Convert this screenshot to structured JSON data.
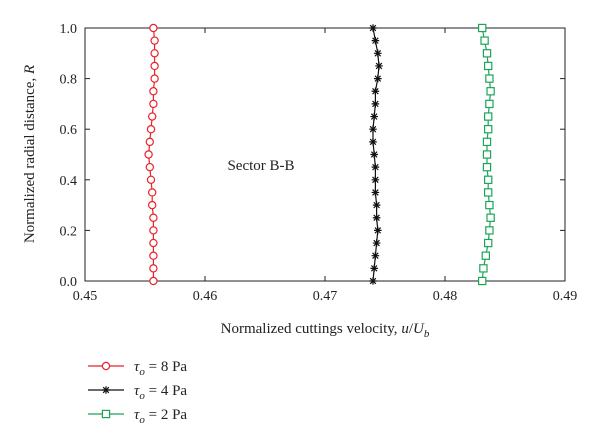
{
  "chart_data": {
    "type": "line",
    "xlabel_main": "Normalized cuttings velocity, ",
    "xlabel_italic": "u",
    "xlabel_slash": "/",
    "xlabel_U": "U",
    "xlabel_sub": "b",
    "ylabel_main": "Normalized radial distance, ",
    "ylabel_italic": "R",
    "xlim": [
      0.45,
      0.49
    ],
    "ylim": [
      0.0,
      1.0
    ],
    "x_ticks": [
      "0.45",
      "0.46",
      "0.47",
      "0.48",
      "0.49"
    ],
    "y_ticks": [
      "0.0",
      "0.2",
      "0.4",
      "0.6",
      "0.8",
      "1.0"
    ],
    "annotation": "Sector B-B",
    "legend_placement": "bottom-left, below plot",
    "legend_tau": "τ",
    "legend_sub": "o",
    "series": [
      {
        "name": "τo = 8 Pa",
        "legend_value": " = 8 Pa",
        "color": "#e8232a",
        "marker": "circle",
        "points": [
          {
            "x": 0.4557,
            "y": 1.0
          },
          {
            "x": 0.4558,
            "y": 0.95
          },
          {
            "x": 0.4558,
            "y": 0.9
          },
          {
            "x": 0.4558,
            "y": 0.85
          },
          {
            "x": 0.4558,
            "y": 0.8
          },
          {
            "x": 0.4557,
            "y": 0.75
          },
          {
            "x": 0.4557,
            "y": 0.7
          },
          {
            "x": 0.4556,
            "y": 0.65
          },
          {
            "x": 0.4555,
            "y": 0.6
          },
          {
            "x": 0.4554,
            "y": 0.55
          },
          {
            "x": 0.4553,
            "y": 0.5
          },
          {
            "x": 0.4554,
            "y": 0.45
          },
          {
            "x": 0.4555,
            "y": 0.4
          },
          {
            "x": 0.4556,
            "y": 0.35
          },
          {
            "x": 0.4556,
            "y": 0.3
          },
          {
            "x": 0.4557,
            "y": 0.25
          },
          {
            "x": 0.4557,
            "y": 0.2
          },
          {
            "x": 0.4557,
            "y": 0.15
          },
          {
            "x": 0.4557,
            "y": 0.1
          },
          {
            "x": 0.4557,
            "y": 0.05
          },
          {
            "x": 0.4557,
            "y": 0.0
          }
        ]
      },
      {
        "name": "τo = 4 Pa",
        "legend_value": " = 4 Pa",
        "color": "#111111",
        "marker": "asterisk",
        "points": [
          {
            "x": 0.474,
            "y": 1.0
          },
          {
            "x": 0.4742,
            "y": 0.95
          },
          {
            "x": 0.4744,
            "y": 0.9
          },
          {
            "x": 0.4745,
            "y": 0.85
          },
          {
            "x": 0.4744,
            "y": 0.8
          },
          {
            "x": 0.4742,
            "y": 0.75
          },
          {
            "x": 0.4742,
            "y": 0.7
          },
          {
            "x": 0.4741,
            "y": 0.65
          },
          {
            "x": 0.474,
            "y": 0.6
          },
          {
            "x": 0.474,
            "y": 0.55
          },
          {
            "x": 0.4741,
            "y": 0.5
          },
          {
            "x": 0.4742,
            "y": 0.45
          },
          {
            "x": 0.4742,
            "y": 0.4
          },
          {
            "x": 0.4742,
            "y": 0.35
          },
          {
            "x": 0.4743,
            "y": 0.3
          },
          {
            "x": 0.4743,
            "y": 0.25
          },
          {
            "x": 0.4744,
            "y": 0.2
          },
          {
            "x": 0.4743,
            "y": 0.15
          },
          {
            "x": 0.4742,
            "y": 0.1
          },
          {
            "x": 0.4741,
            "y": 0.05
          },
          {
            "x": 0.474,
            "y": 0.0
          }
        ]
      },
      {
        "name": "τo = 2 Pa",
        "legend_value": " = 2 Pa",
        "color": "#1aa55a",
        "marker": "square",
        "points": [
          {
            "x": 0.4831,
            "y": 1.0
          },
          {
            "x": 0.4833,
            "y": 0.95
          },
          {
            "x": 0.4835,
            "y": 0.9
          },
          {
            "x": 0.4836,
            "y": 0.85
          },
          {
            "x": 0.4837,
            "y": 0.8
          },
          {
            "x": 0.4838,
            "y": 0.75
          },
          {
            "x": 0.4837,
            "y": 0.7
          },
          {
            "x": 0.4836,
            "y": 0.65
          },
          {
            "x": 0.4836,
            "y": 0.6
          },
          {
            "x": 0.4835,
            "y": 0.55
          },
          {
            "x": 0.4835,
            "y": 0.5
          },
          {
            "x": 0.4835,
            "y": 0.45
          },
          {
            "x": 0.4836,
            "y": 0.4
          },
          {
            "x": 0.4836,
            "y": 0.35
          },
          {
            "x": 0.4837,
            "y": 0.3
          },
          {
            "x": 0.4838,
            "y": 0.25
          },
          {
            "x": 0.4837,
            "y": 0.2
          },
          {
            "x": 0.4836,
            "y": 0.15
          },
          {
            "x": 0.4834,
            "y": 0.1
          },
          {
            "x": 0.4832,
            "y": 0.05
          },
          {
            "x": 0.4831,
            "y": 0.0
          }
        ]
      }
    ]
  }
}
